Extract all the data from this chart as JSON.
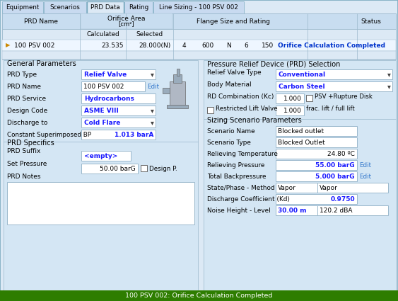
{
  "tabs": [
    "Equipment",
    "Scenarios",
    "PRD Data",
    "Rating",
    "Line Sizing - 100 PSV 002"
  ],
  "active_tab_idx": 2,
  "bg_light": "#dce9f5",
  "bg_mid": "#c8ddf0",
  "bg_panel": "#d4e6f4",
  "white": "#ffffff",
  "blue_text": "#1a1aff",
  "dark_blue": "#0055aa",
  "edit_blue": "#3377cc",
  "green_bar": "#2e7d00",
  "border": "#9ab8cc",
  "border_dark": "#7aaac0",
  "status_bar": "100 PSV 002: Orifice Calculation Completed",
  "figsize": [
    5.63,
    4.25
  ],
  "dpi": 100
}
